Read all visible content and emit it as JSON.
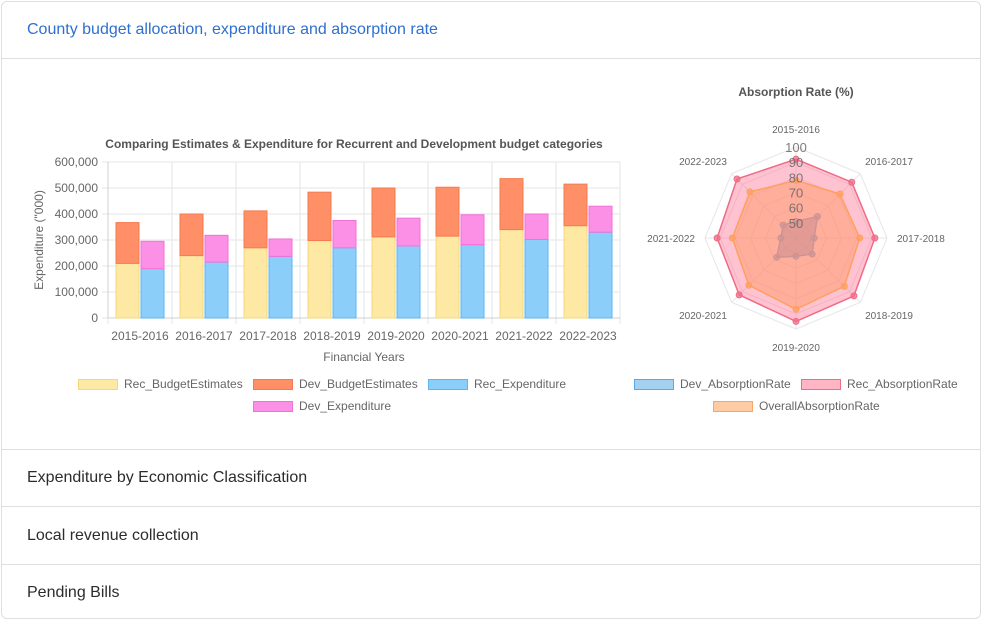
{
  "accordion": {
    "sections": [
      {
        "title": "County budget allocation, expenditure and absorption rate"
      },
      {
        "title": "Expenditure by Economic Classification"
      },
      {
        "title": "Local revenue collection"
      },
      {
        "title": "Pending Bills"
      }
    ]
  },
  "chart_data": [
    {
      "type": "bar",
      "stacked": true,
      "title": "Comparing Estimates & Expenditure for Recurrent and Development budget categories",
      "xlabel": "Financial Years",
      "ylabel": "Expenditure (\"000)",
      "ylim": [
        0,
        600000
      ],
      "yticks": [
        "0",
        "100,000",
        "200,000",
        "300,000",
        "400,000",
        "500,000",
        "600,000"
      ],
      "categories": [
        "2015-2016",
        "2016-2017",
        "2017-2018",
        "2018-2019",
        "2019-2020",
        "2020-2021",
        "2021-2022",
        "2022-2023"
      ],
      "series": [
        {
          "name": "Rec_BudgetEstimates",
          "stack": "estimates",
          "color": "#fde9a3",
          "border": "#f8d77a",
          "values": [
            210000,
            240000,
            270000,
            298000,
            312000,
            315000,
            340000,
            355000
          ]
        },
        {
          "name": "Dev_BudgetEstimates",
          "stack": "estimates",
          "color": "#ff8f66",
          "border": "#f77a4f",
          "values": [
            157000,
            160000,
            142000,
            186000,
            188000,
            188000,
            196000,
            160000
          ]
        },
        {
          "name": "Rec_Expenditure",
          "stack": "expenditure",
          "color": "#8ccefa",
          "border": "#5fb6ec",
          "values": [
            190000,
            215000,
            237000,
            270000,
            277000,
            282000,
            302000,
            330000
          ]
        },
        {
          "name": "Dev_Expenditure",
          "stack": "expenditure",
          "color": "#fc8fe6",
          "border": "#f072d6",
          "values": [
            105000,
            103000,
            67000,
            105000,
            107000,
            115000,
            98000,
            100000
          ]
        }
      ],
      "legend_position": "bottom",
      "grid": true
    },
    {
      "type": "radar",
      "title": "Absorption Rate (%)",
      "categories": [
        "2015-2016",
        "2016-2017",
        "2017-2018",
        "2018-2019",
        "2019-2020",
        "2020-2021",
        "2021-2022",
        "2022-2023"
      ],
      "rticks": [
        "50",
        "60",
        "70",
        "80",
        "90",
        "100"
      ],
      "rlim": [
        40,
        100
      ],
      "series": [
        {
          "name": "Dev_AbsorptionRate",
          "color": "#5aa9e6",
          "fill": "rgba(90,140,220,0.55)",
          "values": [
            51,
            60,
            52,
            55,
            52,
            58,
            50,
            52
          ]
        },
        {
          "name": "Rec_AbsorptionRate",
          "color": "#f06b86",
          "fill": "rgba(255,120,150,0.45)",
          "values": [
            92,
            92,
            92,
            94,
            95,
            93,
            92,
            95
          ]
        },
        {
          "name": "OverallAbsorptionRate",
          "color": "#ff9f60",
          "fill": "rgba(255,150,90,0.45)",
          "values": [
            78,
            81,
            82,
            85,
            87,
            84,
            82,
            83
          ]
        }
      ],
      "legend_position": "bottom"
    }
  ]
}
